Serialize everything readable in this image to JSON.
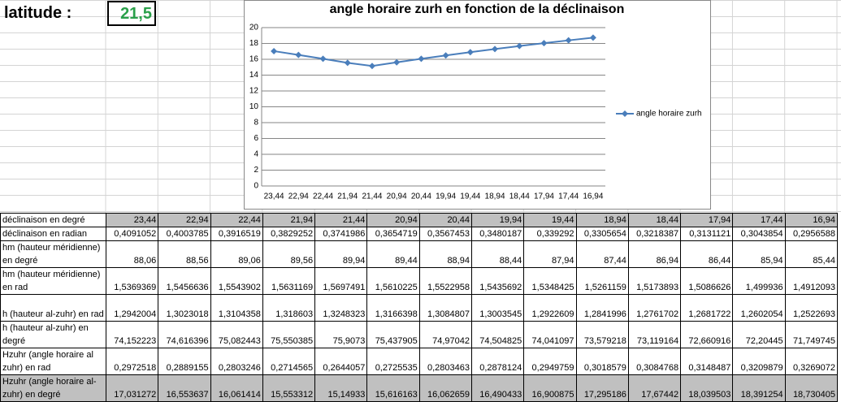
{
  "header": {
    "label": "latitude :",
    "value": "21,5"
  },
  "chart_data": {
    "type": "line",
    "title": "angle horaire zurh en fonction de la déclinaison",
    "categories": [
      "23,44",
      "22,94",
      "22,44",
      "21,94",
      "21,44",
      "20,94",
      "20,44",
      "19,94",
      "19,44",
      "18,94",
      "18,44",
      "17,94",
      "17,44",
      "16,94"
    ],
    "series": [
      {
        "name": "angle horaire zurh",
        "color": "#4a7ebb",
        "values": [
          17.031272,
          16.553637,
          16.061414,
          15.553312,
          15.14933,
          15.616163,
          16.062659,
          16.490433,
          16.900875,
          17.295186,
          17.67442,
          18.039503,
          18.391254,
          18.730405
        ]
      }
    ],
    "ylim": [
      0,
      20
    ],
    "yticks": [
      0,
      2,
      4,
      6,
      8,
      10,
      12,
      14,
      16,
      18,
      20
    ],
    "grid": true,
    "legend": "right"
  },
  "table": {
    "rows": [
      {
        "label": "déclinaison en degré",
        "cells": [
          "23,44",
          "22,94",
          "22,44",
          "21,94",
          "21,44",
          "20,94",
          "20,44",
          "19,94",
          "19,44",
          "18,94",
          "18,44",
          "17,94",
          "17,44",
          "16,94"
        ]
      },
      {
        "label": "déclinaison en radian",
        "cells": [
          "0,4091052",
          "0,4003785",
          "0,3916519",
          "0,3829252",
          "0,3741986",
          "0,3654719",
          "0,3567453",
          "0,3480187",
          "0,339292",
          "0,3305654",
          "0,3218387",
          "0,3131121",
          "0,3043854",
          "0,2956588"
        ]
      },
      {
        "label": "hm (hauteur méridienne) en degré",
        "cells": [
          "88,06",
          "88,56",
          "89,06",
          "89,56",
          "89,94",
          "89,44",
          "88,94",
          "88,44",
          "87,94",
          "87,44",
          "86,94",
          "86,44",
          "85,94",
          "85,44"
        ]
      },
      {
        "label": "hm (hauteur méridienne) en rad",
        "cells": [
          "1,5369369",
          "1,5456636",
          "1,5543902",
          "1,5631169",
          "1,5697491",
          "1,5610225",
          "1,5522958",
          "1,5435692",
          "1,5348425",
          "1,5261159",
          "1,5173893",
          "1,5086626",
          "1,499936",
          "1,4912093"
        ]
      },
      {
        "label": "h (hauteur al-zuhr) en rad",
        "cells": [
          "1,2942004",
          "1,3023018",
          "1,3104358",
          "1,318603",
          "1,3248323",
          "1,3166398",
          "1,3084807",
          "1,3003545",
          "1,2922609",
          "1,2841996",
          "1,2761702",
          "1,2681722",
          "1,2602054",
          "1,2522693"
        ]
      },
      {
        "label": "h (hauteur al-zuhr) en degré",
        "cells": [
          "74,152223",
          "74,616396",
          "75,082443",
          "75,550385",
          "75,9073",
          "75,437905",
          "74,97042",
          "74,504825",
          "74,041097",
          "73,579218",
          "73,119164",
          "72,660916",
          "72,20445",
          "71,749745"
        ]
      },
      {
        "label": "Hzuhr (angle horaire al zuhr) en rad",
        "cells": [
          "0,2972518",
          "0,2889155",
          "0,2803246",
          "0,2714565",
          "0,2644057",
          "0,2725535",
          "0,2803463",
          "0,2878124",
          "0,2949759",
          "0,3018579",
          "0,3084768",
          "0,3148487",
          "0,3209879",
          "0,3269072"
        ]
      },
      {
        "label": "Hzuhr (angle horaire al-zuhr) en degré",
        "cells": [
          "17,031272",
          "16,553637",
          "16,061414",
          "15,553312",
          "15,14933",
          "15,616163",
          "16,062659",
          "16,490433",
          "16,900875",
          "17,295186",
          "17,67442",
          "18,039503",
          "18,391254",
          "18,730405"
        ]
      }
    ]
  }
}
